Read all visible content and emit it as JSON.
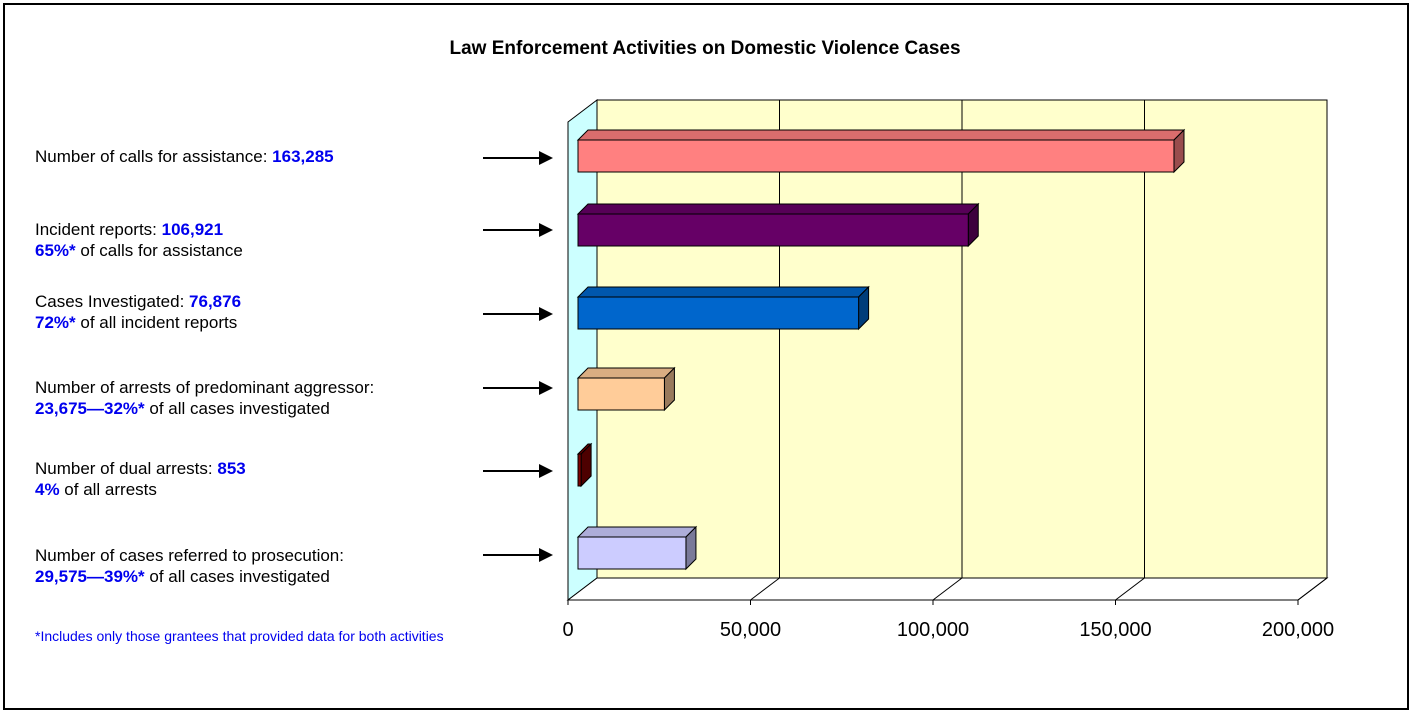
{
  "title": "Law Enforcement Activities on Domestic Violence Cases",
  "rows": [
    {
      "line1_text": "Number of calls for assistance: ",
      "line1_value": "163,285",
      "line2_value": "",
      "line2_text": ""
    },
    {
      "line1_text": "Incident reports: ",
      "line1_value": "106,921",
      "line2_value": "65%*",
      "line2_text": " of calls for assistance"
    },
    {
      "line1_text": "Cases Investigated: ",
      "line1_value": "76,876",
      "line2_value": "72%*",
      "line2_text": " of all incident reports"
    },
    {
      "line1_text": "Number of arrests of predominant aggressor:",
      "line1_value": "",
      "line2_value": "23,675—32%*",
      "line2_text": " of all cases investigated"
    },
    {
      "line1_text": "Number of dual arrests: ",
      "line1_value": "853",
      "line2_value": "4%",
      "line2_text": " of all arrests"
    },
    {
      "line1_text": "Number of cases referred to prosecution:",
      "line1_value": "",
      "line2_value": "29,575—39%*",
      "line2_text": " of all cases investigated"
    }
  ],
  "footnote": "*Includes only those grantees that provided data for both activities",
  "chart_data": {
    "type": "bar",
    "orientation": "horizontal",
    "categories": [
      "Number of calls for assistance",
      "Incident reports",
      "Cases Investigated",
      "Number of arrests of predominant aggressor",
      "Number of dual arrests",
      "Number of cases referred to prosecution"
    ],
    "values": [
      163285,
      106921,
      76876,
      23675,
      853,
      29575
    ],
    "colors": [
      "#ff8080",
      "#660066",
      "#0066cc",
      "#ffcc99",
      "#800000",
      "#ccccff"
    ],
    "xlim": [
      0,
      200000
    ],
    "xticks": [
      0,
      50000,
      100000,
      150000,
      200000
    ],
    "xtick_labels": [
      "0",
      "50,000",
      "100,000",
      "150,000",
      "200,000"
    ],
    "grid": true,
    "wall_color": "#ffffcc",
    "side_wall_color": "#ccffff",
    "style": "3d"
  }
}
